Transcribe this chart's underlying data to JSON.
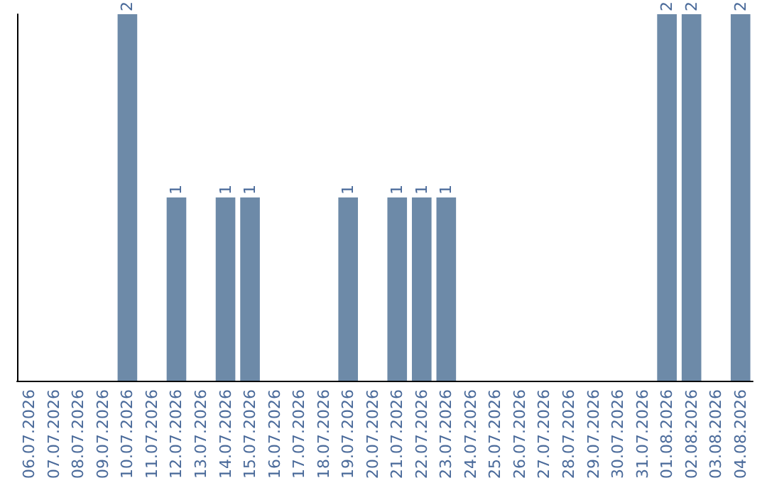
{
  "chart_data": {
    "type": "bar",
    "categories": [
      "06.07.2026",
      "07.07.2026",
      "08.07.2026",
      "09.07.2026",
      "10.07.2026",
      "11.07.2026",
      "12.07.2026",
      "13.07.2026",
      "14.07.2026",
      "15.07.2026",
      "16.07.2026",
      "17.07.2026",
      "18.07.2026",
      "19.07.2026",
      "20.07.2026",
      "21.07.2026",
      "22.07.2026",
      "23.07.2026",
      "24.07.2026",
      "25.07.2026",
      "26.07.2026",
      "27.07.2026",
      "28.07.2026",
      "29.07.2026",
      "30.07.2026",
      "31.07.2026",
      "01.08.2026",
      "02.08.2026",
      "03.08.2026",
      "04.08.2026"
    ],
    "values": [
      0,
      0,
      0,
      0,
      2,
      0,
      1,
      0,
      1,
      1,
      0,
      0,
      0,
      1,
      0,
      1,
      1,
      1,
      0,
      0,
      0,
      0,
      0,
      0,
      0,
      0,
      2,
      2,
      0,
      2
    ],
    "value_labels": [
      null,
      null,
      null,
      null,
      "2",
      null,
      "1",
      null,
      "1",
      "1",
      null,
      null,
      null,
      "1",
      null,
      "1",
      "1",
      "1",
      null,
      null,
      null,
      null,
      null,
      null,
      null,
      null,
      "2",
      "2",
      null,
      "2"
    ],
    "color": "#6d8aa8",
    "grid": false,
    "tick_labels": "x"
  }
}
